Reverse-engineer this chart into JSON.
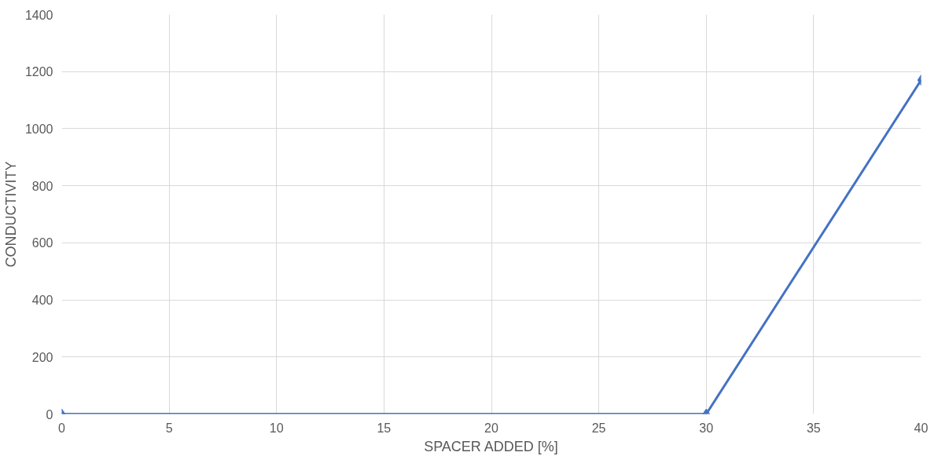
{
  "chart_data": {
    "type": "line",
    "xlabel": "SPACER ADDED [%]",
    "ylabel": "CONDUCTIVITY",
    "x": [
      0,
      30,
      40
    ],
    "series": [
      {
        "color": "#4472c4",
        "values": [
          0,
          0,
          1170
        ]
      }
    ],
    "xlim": [
      0,
      40
    ],
    "xticks": [
      0,
      5,
      10,
      15,
      20,
      25,
      30,
      35,
      40
    ],
    "ylim": [
      0,
      1400
    ],
    "yticks": [
      0,
      200,
      400,
      600,
      800,
      1000,
      1200,
      1400
    ],
    "grid": true,
    "marker": "diamond",
    "line_style": "solid"
  }
}
